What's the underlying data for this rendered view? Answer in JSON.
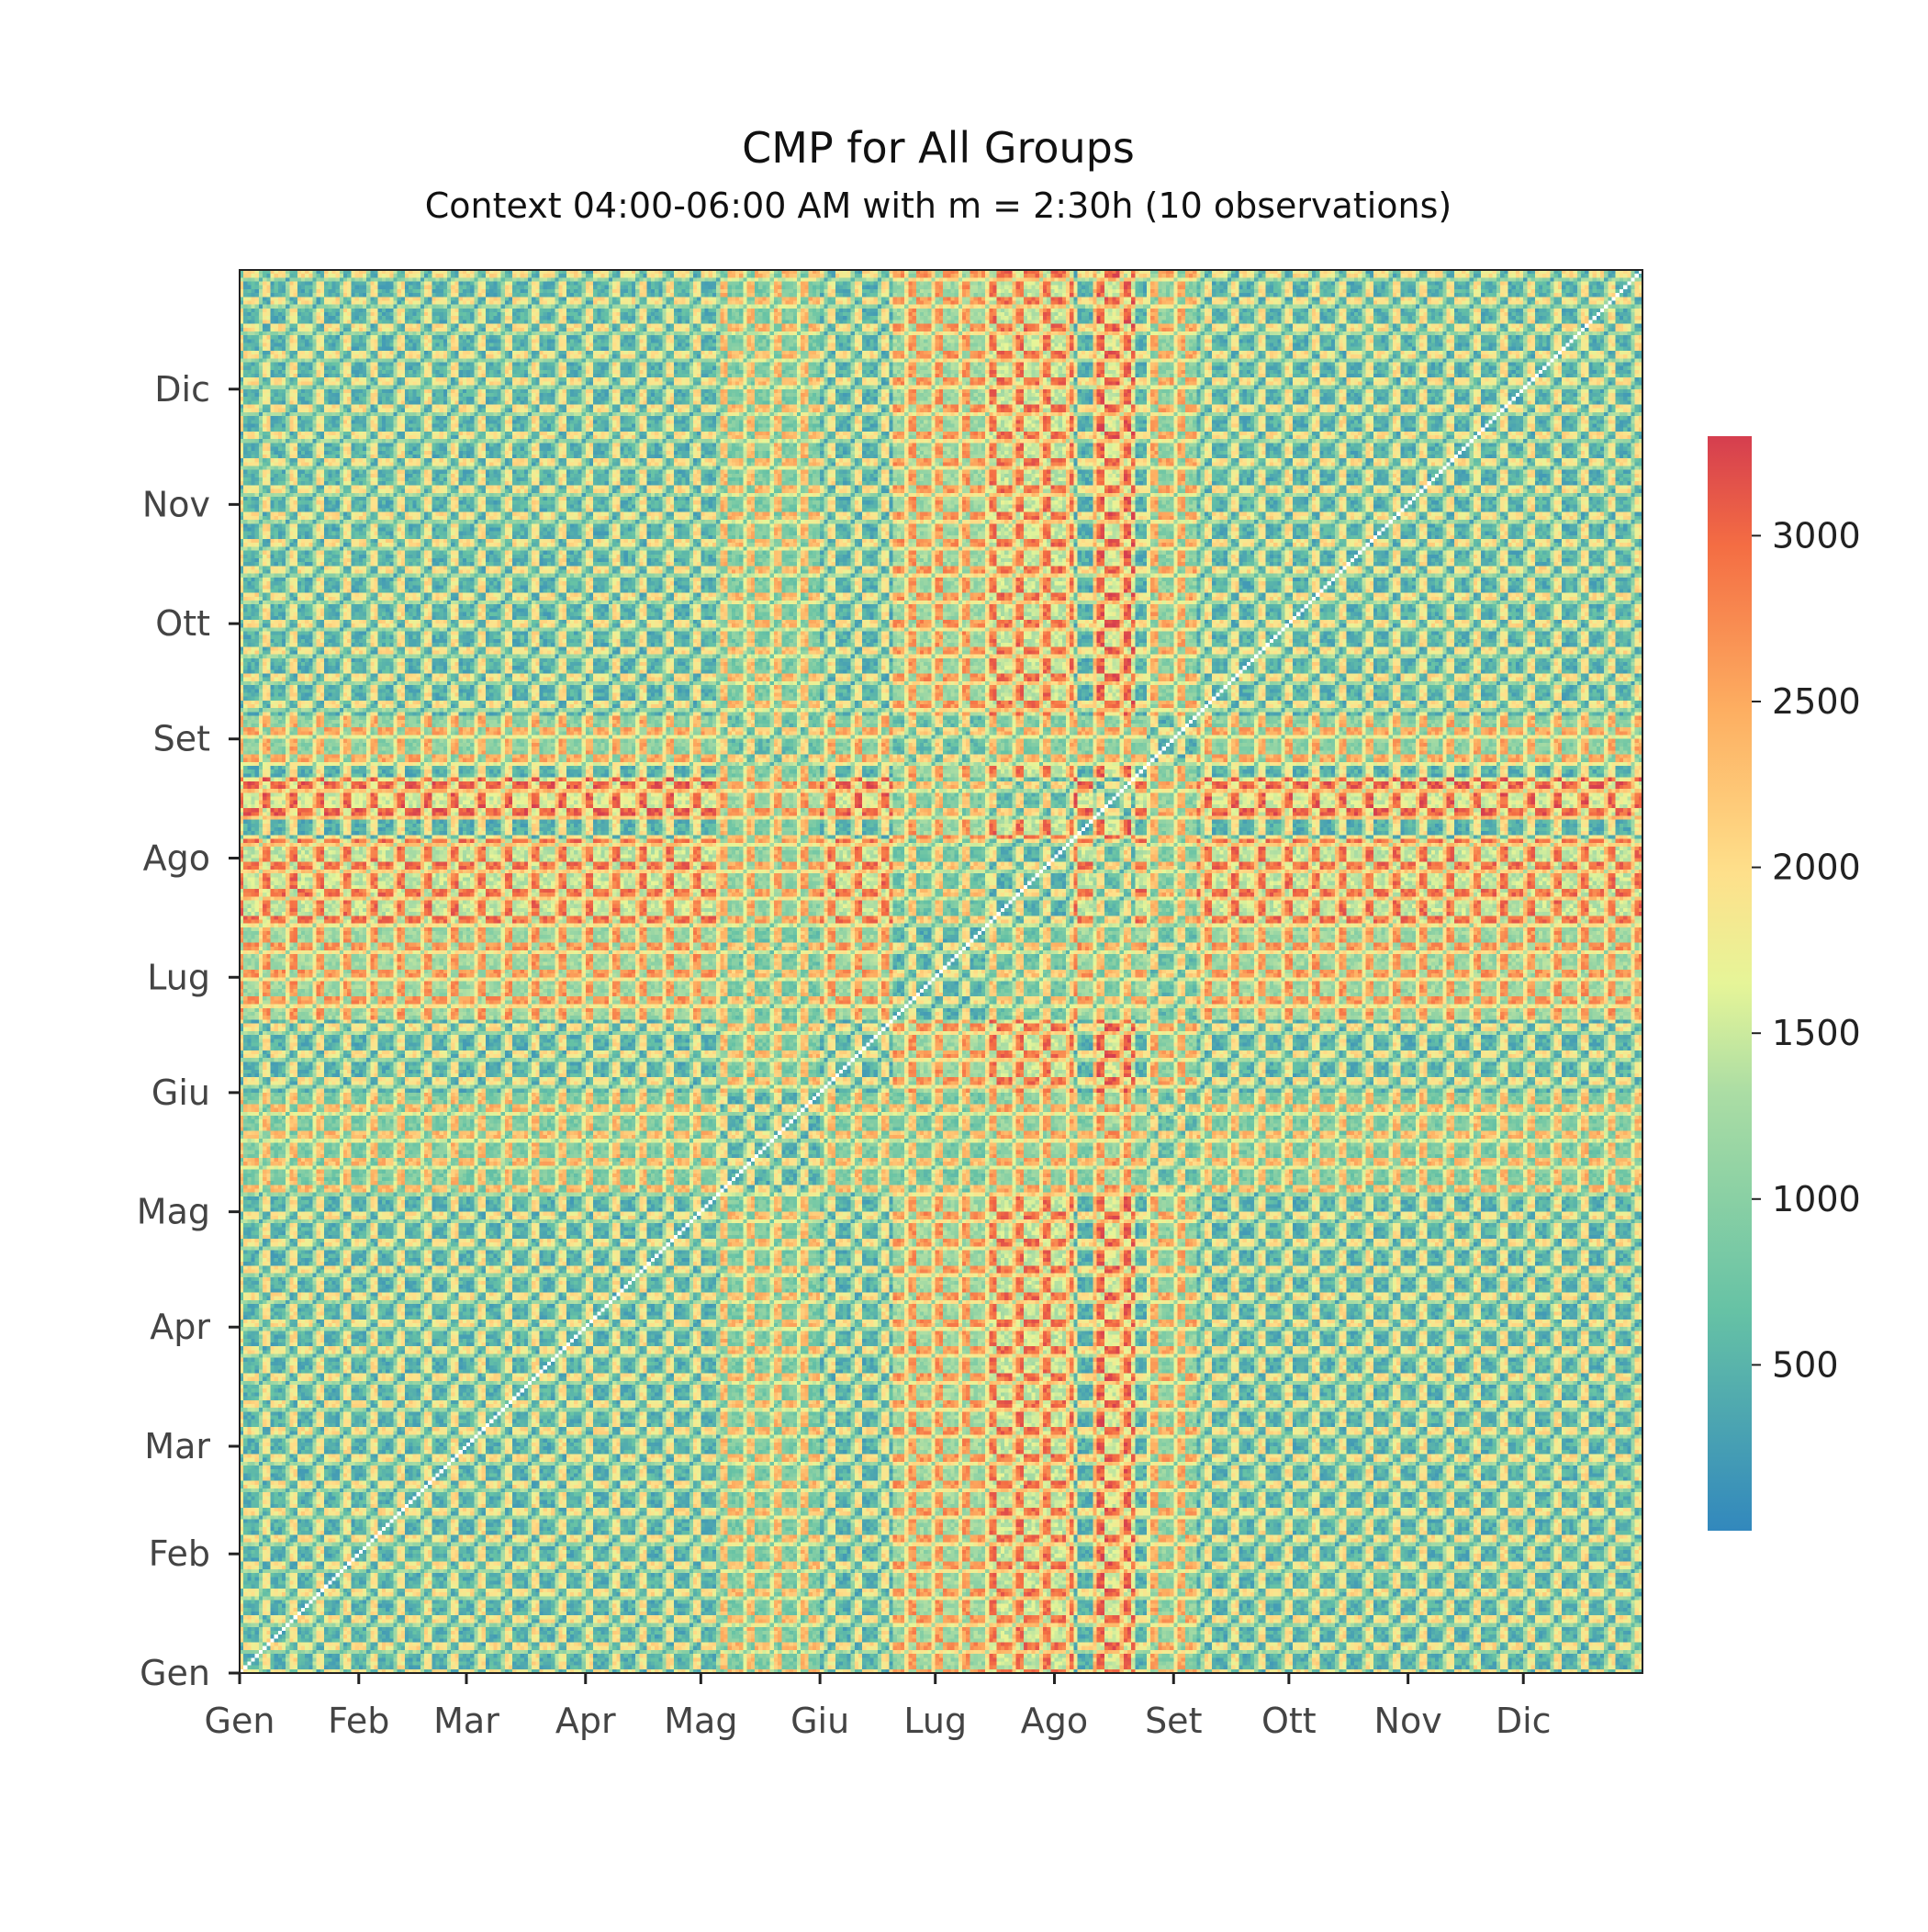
{
  "chart_data": {
    "type": "heatmap",
    "title": "CMP for All Groups",
    "subtitle": "Context 04:00-06:00 AM with m = 2:30h (10 observations)",
    "x_tick_labels": [
      "Gen",
      "Feb",
      "Mar",
      "Apr",
      "Mag",
      "Giu",
      "Lug",
      "Ago",
      "Set",
      "Ott",
      "Nov",
      "Dic"
    ],
    "y_tick_labels": [
      "Gen",
      "Feb",
      "Mar",
      "Apr",
      "Mag",
      "Giu",
      "Lug",
      "Ago",
      "Set",
      "Ott",
      "Nov",
      "Dic"
    ],
    "month_start_day": [
      0,
      31,
      59,
      90,
      120,
      151,
      181,
      212,
      243,
      273,
      304,
      334
    ],
    "n_days": 365,
    "colorbar": {
      "min": 0,
      "max": 3300,
      "ticks": [
        500,
        1000,
        1500,
        2000,
        2500,
        3000
      ],
      "tick_labels": [
        "500",
        "1000",
        "1500",
        "2000",
        "2500",
        "3000"
      ],
      "colormap": "Spectral_r"
    },
    "grid": false,
    "diagonal_value": null
  }
}
